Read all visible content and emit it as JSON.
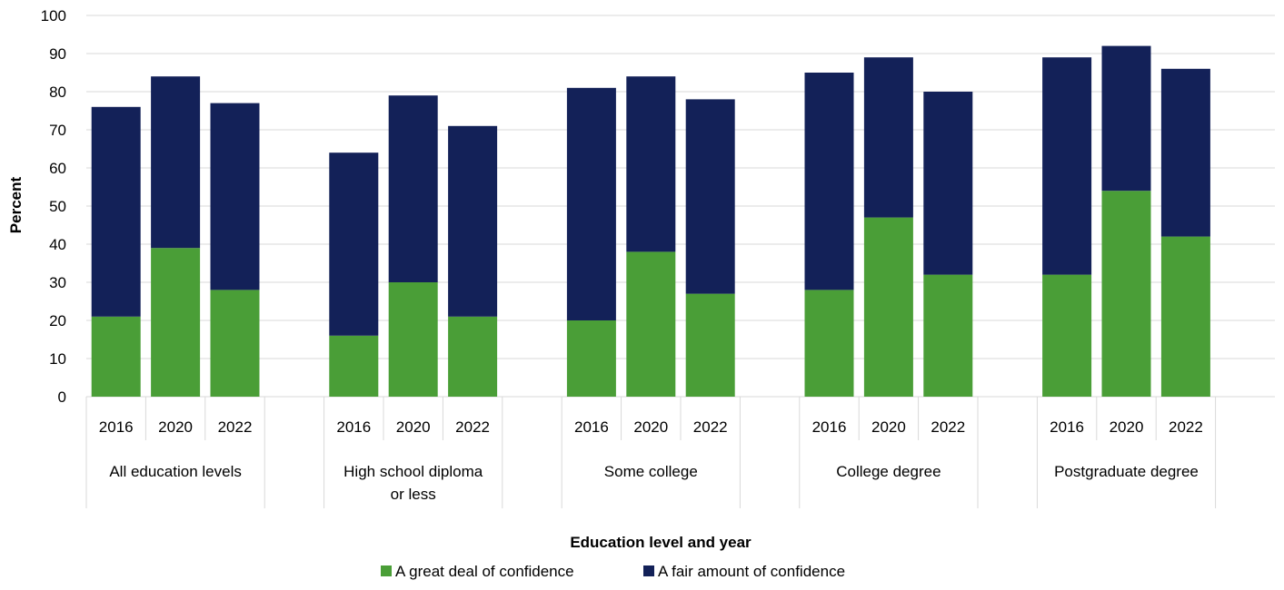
{
  "chart_data": {
    "type": "bar",
    "stacked": true,
    "groups": [
      {
        "label": [
          "All education levels"
        ],
        "years": [
          "2016",
          "2020",
          "2022"
        ],
        "great_deal": [
          21,
          39,
          28
        ],
        "total": [
          76,
          84,
          77
        ]
      },
      {
        "label": [
          "High school diploma",
          "or less"
        ],
        "years": [
          "2016",
          "2020",
          "2022"
        ],
        "great_deal": [
          16,
          30,
          21
        ],
        "total": [
          64,
          79,
          71
        ]
      },
      {
        "label": [
          "Some college"
        ],
        "years": [
          "2016",
          "2020",
          "2022"
        ],
        "great_deal": [
          20,
          38,
          27
        ],
        "total": [
          81,
          84,
          78
        ]
      },
      {
        "label": [
          "College degree"
        ],
        "years": [
          "2016",
          "2020",
          "2022"
        ],
        "great_deal": [
          28,
          47,
          32
        ],
        "total": [
          85,
          89,
          80
        ]
      },
      {
        "label": [
          "Postgraduate degree"
        ],
        "years": [
          "2016",
          "2020",
          "2022"
        ],
        "great_deal": [
          32,
          54,
          42
        ],
        "total": [
          89,
          92,
          86
        ]
      }
    ],
    "series": [
      {
        "name": "A great deal of confidence",
        "color": "#4a9e37"
      },
      {
        "name": "A fair amount of confidence",
        "color": "#132158"
      }
    ],
    "ylabel": "Percent",
    "xlabel": "Education level and year",
    "ylim": [
      0,
      100
    ],
    "yticks": [
      0,
      10,
      20,
      30,
      40,
      50,
      60,
      70,
      80,
      90,
      100
    ],
    "grid": true,
    "legend_position": "bottom"
  }
}
